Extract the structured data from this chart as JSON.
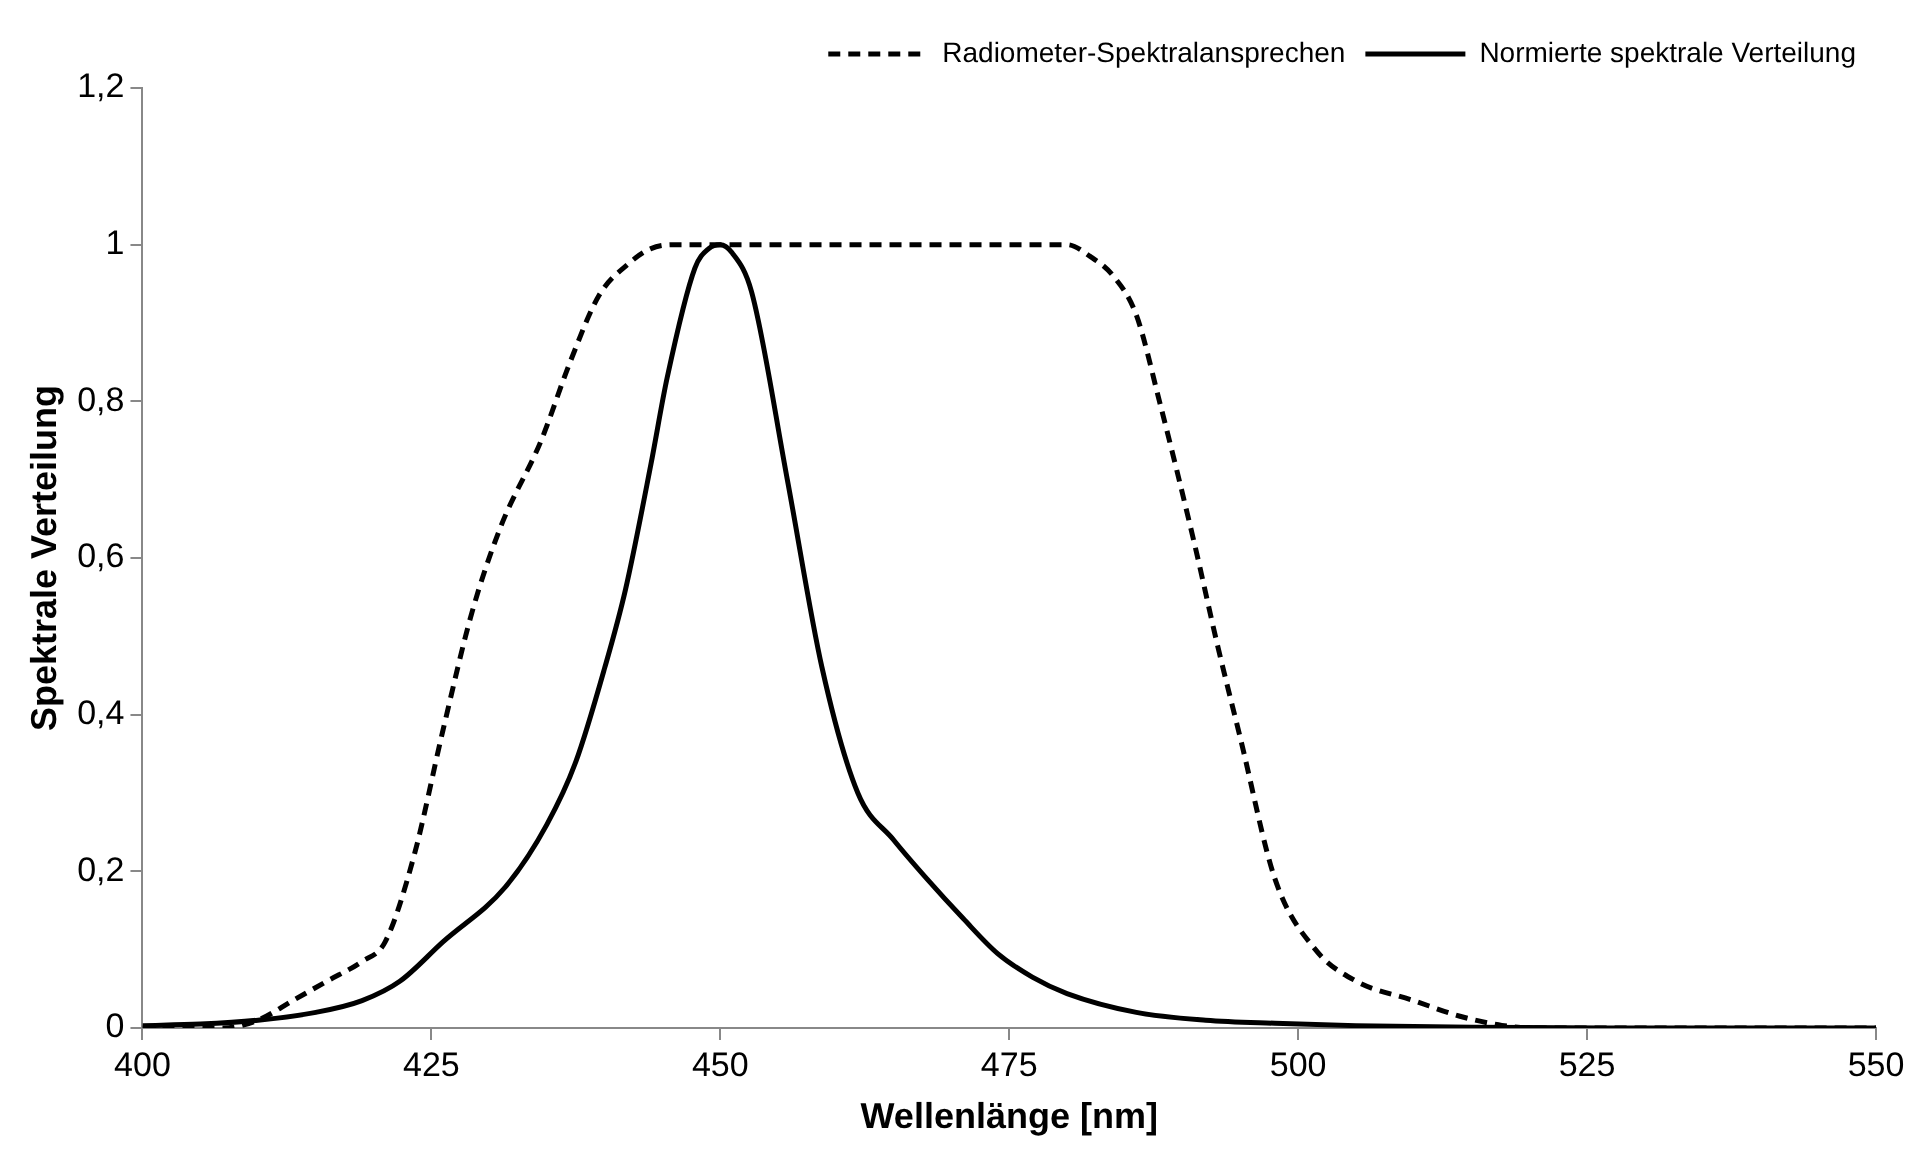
{
  "chart_data": {
    "type": "line",
    "xlabel": "Wellenlänge [nm]",
    "ylabel": "Spektrale Verteilung",
    "xlim": [
      400,
      550
    ],
    "xticks": [
      400,
      425,
      450,
      475,
      500,
      525,
      550
    ],
    "ylim": [
      0,
      1.2
    ],
    "yticks": [
      0,
      {
        "value": 0.2,
        "label": "0,2"
      },
      {
        "value": 0.4,
        "label": "0,4"
      },
      {
        "value": 0.6,
        "label": "0,6"
      },
      {
        "value": 0.8,
        "label": "0,8"
      },
      1,
      {
        "value": 1.2,
        "label": "1,2"
      }
    ],
    "grid": false,
    "legend": "top right",
    "marker": "none",
    "series": [
      {
        "name": "Radiometer-Spektralansprechen",
        "color": "#000000",
        "line_style": "dashed",
        "x": [
          400,
          405,
          407,
          410,
          413,
          416,
          419,
          421,
          423.5,
          426,
          428.5,
          431,
          434.5,
          437,
          439.5,
          442,
          444,
          446,
          448,
          450,
          460,
          470,
          478,
          480,
          482,
          484,
          486,
          488,
          491,
          493,
          495,
          498,
          501.5,
          505,
          510,
          514,
          517,
          520,
          530,
          540,
          550
        ],
        "values": [
          0,
          0,
          0,
          0.01,
          0.035,
          0.06,
          0.085,
          0.11,
          0.22,
          0.38,
          0.53,
          0.64,
          0.75,
          0.85,
          0.935,
          0.975,
          0.995,
          1,
          1,
          1,
          1,
          1,
          1,
          1,
          0.985,
          0.96,
          0.91,
          0.8,
          0.62,
          0.49,
          0.37,
          0.19,
          0.1,
          0.06,
          0.035,
          0.015,
          0.005,
          0,
          0,
          0,
          0
        ]
      },
      {
        "name": "Normierte spektrale Verteilung",
        "color": "#000000",
        "line_style": "solid",
        "x": [
          400,
          405,
          410,
          415,
          419,
          422.3,
          426,
          431.4,
          435,
          437.5,
          440,
          441.8,
          444,
          445.4,
          447.8,
          449,
          450,
          451,
          452.7,
          455.8,
          458.8,
          461.9,
          465,
          467.9,
          471,
          474,
          477,
          480,
          486,
          492,
          498,
          505,
          515,
          530,
          550
        ],
        "values": [
          0.003,
          0.005,
          0.01,
          0.02,
          0.035,
          0.06,
          0.11,
          0.18,
          0.26,
          0.34,
          0.46,
          0.56,
          0.72,
          0.83,
          0.97,
          0.995,
          1,
          0.99,
          0.94,
          0.7,
          0.46,
          0.3,
          0.24,
          0.19,
          0.14,
          0.095,
          0.065,
          0.044,
          0.02,
          0.01,
          0.006,
          0.003,
          0.001,
          0,
          0
        ]
      }
    ]
  }
}
